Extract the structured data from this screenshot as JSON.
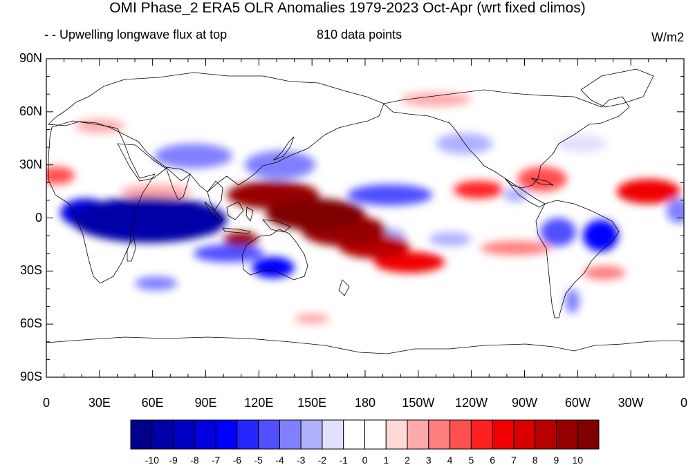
{
  "title": "OMI Phase_2 ERA5 OLR Anomalies 1979-2023 Oct-Apr (wrt fixed climos)",
  "left_subtitle": "- - Upwelling longwave flux at top",
  "center_subtitle": "810 data points",
  "units": "W/m2",
  "map": {
    "projection": "cylindrical equidistant",
    "lon_range": [
      0,
      360
    ],
    "lat_range": [
      -90,
      90
    ],
    "y_ticks": [
      {
        "lat": 90,
        "label": "90N"
      },
      {
        "lat": 60,
        "label": "60N"
      },
      {
        "lat": 30,
        "label": "30N"
      },
      {
        "lat": 0,
        "label": "0"
      },
      {
        "lat": -30,
        "label": "30S"
      },
      {
        "lat": -60,
        "label": "60S"
      },
      {
        "lat": -90,
        "label": "90S"
      }
    ],
    "x_ticks": [
      {
        "lon": 0,
        "label": "0"
      },
      {
        "lon": 30,
        "label": "30E"
      },
      {
        "lon": 60,
        "label": "60E"
      },
      {
        "lon": 90,
        "label": "90E"
      },
      {
        "lon": 120,
        "label": "120E"
      },
      {
        "lon": 150,
        "label": "150E"
      },
      {
        "lon": 180,
        "label": "180"
      },
      {
        "lon": 210,
        "label": "150W"
      },
      {
        "lon": 240,
        "label": "120W"
      },
      {
        "lon": 270,
        "label": "90W"
      },
      {
        "lon": 300,
        "label": "60W"
      },
      {
        "lon": 330,
        "label": "30W"
      },
      {
        "lon": 360,
        "label": "0"
      }
    ]
  },
  "colorbar": {
    "labels": [
      "-10",
      "-9",
      "-8",
      "-7",
      "-6",
      "-5",
      "-4",
      "-3",
      "-2",
      "-1",
      "0",
      "1",
      "2",
      "3",
      "4",
      "5",
      "6",
      "7",
      "8",
      "9",
      "10"
    ],
    "colors": [
      "#00008c",
      "#0000a8",
      "#0000c4",
      "#0000e0",
      "#0000ff",
      "#2626ff",
      "#5050ff",
      "#8080ff",
      "#b0b0ff",
      "#e0e0ff",
      "#ffffff",
      "#ffffff",
      "#ffd8d8",
      "#ffaaaa",
      "#ff7e7e",
      "#ff5050",
      "#ff2020",
      "#f00000",
      "#d80000",
      "#b80000",
      "#980000",
      "#800000"
    ]
  },
  "anomaly_blobs": [
    {
      "lon": 58,
      "lat": -1,
      "rlon": 44,
      "rlat": 13,
      "value": -10
    },
    {
      "lon": 70,
      "lat": -2,
      "rlon": 24,
      "rlat": 10,
      "value": -10
    },
    {
      "lon": 22,
      "lat": 3,
      "rlon": 14,
      "rlat": 8,
      "value": -8
    },
    {
      "lon": 88,
      "lat": -2,
      "rlon": 12,
      "rlat": 8,
      "value": -9
    },
    {
      "lon": 103,
      "lat": -20,
      "rlon": 20,
      "rlat": 5,
      "value": -5
    },
    {
      "lon": 128,
      "lat": -28,
      "rlon": 12,
      "rlat": 6,
      "value": -7
    },
    {
      "lon": 62,
      "lat": -37,
      "rlon": 12,
      "rlat": 4,
      "value": -4
    },
    {
      "lon": 83,
      "lat": 35,
      "rlon": 22,
      "rlat": 7,
      "value": -4
    },
    {
      "lon": 132,
      "lat": 30,
      "rlon": 20,
      "rlat": 8,
      "value": -4
    },
    {
      "lon": 194,
      "lat": 13,
      "rlon": 24,
      "rlat": 6,
      "value": -5
    },
    {
      "lon": 189,
      "lat": -10,
      "rlon": 14,
      "rlat": 5,
      "value": -3
    },
    {
      "lon": 228,
      "lat": -12,
      "rlon": 12,
      "rlat": 4,
      "value": -3
    },
    {
      "lon": 289,
      "lat": -8,
      "rlon": 10,
      "rlat": 8,
      "value": -5
    },
    {
      "lon": 313,
      "lat": -10,
      "rlon": 10,
      "rlat": 9,
      "value": -7
    },
    {
      "lon": 357,
      "lat": 4,
      "rlon": 7,
      "rlat": 7,
      "value": -4
    },
    {
      "lon": 297,
      "lat": -47,
      "rlon": 4,
      "rlat": 7,
      "value": -4
    },
    {
      "lon": 236,
      "lat": 42,
      "rlon": 16,
      "rlat": 6,
      "value": -3
    },
    {
      "lon": 302,
      "lat": 42,
      "rlon": 14,
      "rlat": 5,
      "value": -2
    },
    {
      "lon": 265,
      "lat": 13,
      "rlon": 7,
      "rlat": 4,
      "value": -3
    },
    {
      "lon": 128,
      "lat": 13,
      "rlon": 26,
      "rlat": 8,
      "value": 9
    },
    {
      "lon": 152,
      "lat": 2,
      "rlon": 28,
      "rlat": 9,
      "value": 10
    },
    {
      "lon": 168,
      "lat": -7,
      "rlon": 24,
      "rlat": 9,
      "value": 9
    },
    {
      "lon": 185,
      "lat": -16,
      "rlon": 20,
      "rlat": 7,
      "value": 8
    },
    {
      "lon": 205,
      "lat": -25,
      "rlon": 20,
      "rlat": 6,
      "value": 6
    },
    {
      "lon": 110,
      "lat": -12,
      "rlon": 10,
      "rlat": 4,
      "value": 9
    },
    {
      "lon": 244,
      "lat": 16,
      "rlon": 14,
      "rlat": 5,
      "value": 5
    },
    {
      "lon": 280,
      "lat": 22,
      "rlon": 14,
      "rlat": 7,
      "value": 4
    },
    {
      "lon": 340,
      "lat": 15,
      "rlon": 18,
      "rlat": 7,
      "value": 6
    },
    {
      "lon": 6,
      "lat": 24,
      "rlon": 10,
      "rlat": 5,
      "value": 4
    },
    {
      "lon": 265,
      "lat": -17,
      "rlon": 20,
      "rlat": 4,
      "value": 3
    },
    {
      "lon": 315,
      "lat": -31,
      "rlon": 12,
      "rlat": 4,
      "value": 3
    },
    {
      "lon": 62,
      "lat": 15,
      "rlon": 20,
      "rlat": 4,
      "value": 2
    },
    {
      "lon": 30,
      "lat": 52,
      "rlon": 14,
      "rlat": 4,
      "value": 2
    },
    {
      "lon": 220,
      "lat": 67,
      "rlon": 20,
      "rlat": 4,
      "value": 2
    },
    {
      "lon": 150,
      "lat": -57,
      "rlon": 10,
      "rlat": 3,
      "value": 2
    }
  ]
}
